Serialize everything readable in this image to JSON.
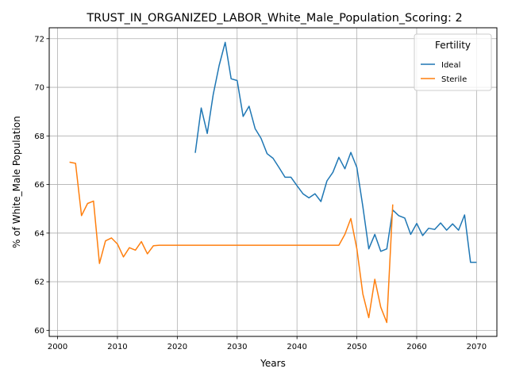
{
  "chart_data": {
    "type": "line",
    "title": "TRUST_IN_ORGANIZED_LABOR_White_Male_Population_Scoring: 2",
    "xlabel": "Years",
    "ylabel": "% of White_Male Population",
    "xlim": [
      1998.6,
      2073.4
    ],
    "ylim": [
      59.75,
      72.45
    ],
    "xticks": [
      2000,
      2010,
      2020,
      2030,
      2040,
      2050,
      2060,
      2070
    ],
    "yticks": [
      60,
      62,
      64,
      66,
      68,
      70,
      72
    ],
    "grid": true,
    "legend": {
      "title": "Fertility",
      "placement": "top-right"
    },
    "series": [
      {
        "name": "Ideal",
        "color": "#1f77b4",
        "x": [
          2023,
          2024,
          2025,
          2026,
          2027,
          2028,
          2029,
          2030,
          2031,
          2032,
          2033,
          2034,
          2035,
          2036,
          2037,
          2038,
          2039,
          2040,
          2041,
          2042,
          2043,
          2044,
          2045,
          2046,
          2047,
          2048,
          2049,
          2050,
          2051,
          2052,
          2053,
          2054,
          2055,
          2056,
          2057,
          2058,
          2059,
          2060,
          2061,
          2062,
          2063,
          2064,
          2065,
          2066,
          2067,
          2068,
          2069,
          2070
        ],
        "y": [
          67.3,
          69.15,
          68.1,
          69.7,
          70.9,
          71.85,
          70.35,
          70.28,
          68.8,
          69.22,
          68.3,
          67.9,
          67.27,
          67.08,
          66.7,
          66.3,
          66.3,
          65.95,
          65.62,
          65.45,
          65.62,
          65.3,
          66.15,
          66.5,
          67.12,
          66.65,
          67.32,
          66.7,
          65.1,
          63.35,
          63.95,
          63.25,
          63.35,
          64.95,
          64.72,
          64.62,
          63.95,
          64.4,
          63.9,
          64.2,
          64.15,
          64.42,
          64.12,
          64.38,
          64.12,
          64.75,
          62.8,
          62.8
        ]
      },
      {
        "name": "Sterile",
        "color": "#ff7f0e",
        "x": [
          2002,
          2003,
          2004,
          2005,
          2006,
          2007,
          2008,
          2009,
          2010,
          2011,
          2012,
          2013,
          2014,
          2015,
          2016,
          2017,
          2018,
          2019,
          2020,
          2021,
          2022,
          2023,
          2024,
          2025,
          2026,
          2027,
          2028,
          2029,
          2030,
          2031,
          2032,
          2033,
          2034,
          2035,
          2036,
          2037,
          2038,
          2039,
          2040,
          2041,
          2042,
          2043,
          2044,
          2045,
          2046,
          2047,
          2048,
          2049,
          2050,
          2051,
          2052,
          2053,
          2054,
          2055,
          2056
        ],
        "y": [
          66.92,
          66.87,
          64.72,
          65.22,
          65.32,
          62.75,
          63.68,
          63.8,
          63.55,
          63.02,
          63.4,
          63.3,
          63.65,
          63.15,
          63.48,
          63.5,
          63.5,
          63.5,
          63.5,
          63.5,
          63.5,
          63.5,
          63.5,
          63.5,
          63.5,
          63.5,
          63.5,
          63.5,
          63.5,
          63.5,
          63.5,
          63.5,
          63.5,
          63.5,
          63.5,
          63.5,
          63.5,
          63.5,
          63.5,
          63.5,
          63.5,
          63.5,
          63.5,
          63.5,
          63.5,
          63.5,
          63.95,
          64.6,
          63.35,
          61.5,
          60.52,
          62.1,
          60.95,
          60.32,
          65.18
        ]
      }
    ]
  }
}
